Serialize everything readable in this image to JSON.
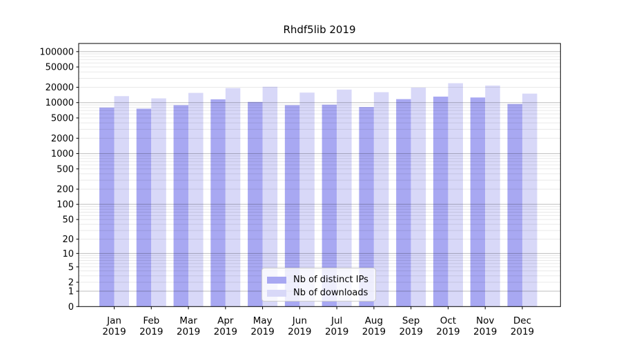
{
  "chart_data": {
    "type": "bar",
    "title": "Rhdf5lib 2019",
    "xlabel": "",
    "ylabel": "",
    "categories": [
      "Jan 2019",
      "Feb 2019",
      "Mar 2019",
      "Apr 2019",
      "May 2019",
      "Jun 2019",
      "Jul 2019",
      "Aug 2019",
      "Sep 2019",
      "Oct 2019",
      "Nov 2019",
      "Dec 2019"
    ],
    "series": [
      {
        "name": "Nb of distinct IPs",
        "color": "#a8a8f2",
        "values": [
          8000,
          7600,
          8900,
          11600,
          10300,
          8900,
          9100,
          8200,
          11700,
          13100,
          12600,
          9400
        ]
      },
      {
        "name": "Nb of downloads",
        "color": "#d8d8f8",
        "values": [
          13400,
          12100,
          15500,
          19300,
          20500,
          15700,
          18000,
          16000,
          19700,
          24000,
          21600,
          15000
        ]
      }
    ],
    "y_scale": "log10(value+1)",
    "y_ticks": [
      0,
      1,
      2,
      5,
      10,
      20,
      50,
      100,
      200,
      500,
      1000,
      2000,
      5000,
      10000,
      20000,
      50000,
      100000
    ],
    "ylim": [
      0,
      143000
    ],
    "grid": true,
    "legend_position": "lower-center"
  }
}
